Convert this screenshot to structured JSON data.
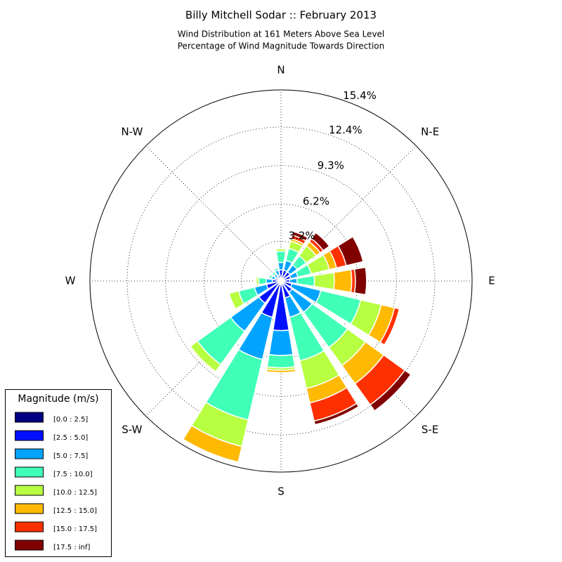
{
  "chart_data": {
    "type": "windrose",
    "title": "Billy Mitchell Sodar :: February 2013",
    "subtitle": [
      "Wind Distribution at 161 Meters Above Sea Level",
      "Percentage of Wind Magnitude Towards Direction"
    ],
    "direction_labels": [
      "N",
      "N-E",
      "E",
      "S-E",
      "S",
      "S-W",
      "W",
      "N-W"
    ],
    "x": [
      0,
      22.5,
      45,
      67.5,
      90,
      112.5,
      135,
      157.5,
      180,
      202.5,
      225,
      247.5,
      270,
      292.5,
      315,
      337.5
    ],
    "ylim": [
      0,
      15.4
    ],
    "yticks": [
      {
        "value": 3.2,
        "label": "3.2%"
      },
      {
        "value": 6.2,
        "label": "6.2%"
      },
      {
        "value": 9.3,
        "label": "9.3%"
      },
      {
        "value": 12.4,
        "label": "12.4%"
      },
      {
        "value": 15.4,
        "label": "15.4%"
      }
    ],
    "legend_title": "Magnitude (m/s)",
    "legend_position": "lower left",
    "series": [
      {
        "name": "[0.0 : 2.5]",
        "color": "#000080",
        "values": [
          0.2,
          0.1,
          0.1,
          0.1,
          0.1,
          0.1,
          0.1,
          0.1,
          0.2,
          0.2,
          0.2,
          0.2,
          0.2,
          0.1,
          0.1,
          0.1
        ]
      },
      {
        "name": "[2.5 : 5.0]",
        "color": "#0010ff",
        "values": [
          0.7,
          0.8,
          0.8,
          0.7,
          0.6,
          0.8,
          1.0,
          1.3,
          3.8,
          2.8,
          2.0,
          1.0,
          0.5,
          0.4,
          0.3,
          0.4
        ]
      },
      {
        "name": "[5.0 : 7.5]",
        "color": "#00a4ff",
        "values": [
          0.6,
          0.8,
          0.7,
          0.6,
          0.6,
          2.4,
          2.0,
          1.6,
          2.0,
          3.5,
          2.8,
          1.0,
          0.5,
          0.3,
          0.3,
          0.4
        ]
      },
      {
        "name": "[7.5 : 10.0]",
        "color": "#40ffb7",
        "values": [
          0.9,
          1.0,
          0.9,
          1.1,
          1.4,
          3.3,
          3.5,
          3.6,
          1.0,
          5.0,
          3.3,
          1.3,
          0.6,
          0.2,
          0.2,
          0.2
        ]
      },
      {
        "name": "[10.0 : 12.5]",
        "color": "#b7ff40",
        "values": [
          0.2,
          0.6,
          1.0,
          1.5,
          1.6,
          1.7,
          1.8,
          2.3,
          0.2,
          2.2,
          0.7,
          0.8,
          0.2,
          0.1,
          0,
          0
        ]
      },
      {
        "name": "[12.5 : 15.0]",
        "color": "#ffb900",
        "values": [
          0,
          0.2,
          0.4,
          0.6,
          1.4,
          1.1,
          1.8,
          1.2,
          0.2,
          1.3,
          0.1,
          0,
          0.1,
          0,
          0,
          0
        ]
      },
      {
        "name": "[15.0 : 17.5]",
        "color": "#ff3000",
        "values": [
          0,
          0.3,
          0.3,
          0.8,
          0.3,
          0.4,
          2.1,
          1.5,
          0,
          0,
          0,
          0,
          0,
          0,
          0,
          0
        ]
      },
      {
        "name": "[17.5 : inf]",
        "color": "#800000",
        "values": [
          0,
          0.3,
          0.6,
          1.4,
          0.9,
          0,
          0.6,
          0.3,
          0,
          0,
          0,
          0,
          0,
          0,
          0,
          0
        ]
      }
    ]
  }
}
